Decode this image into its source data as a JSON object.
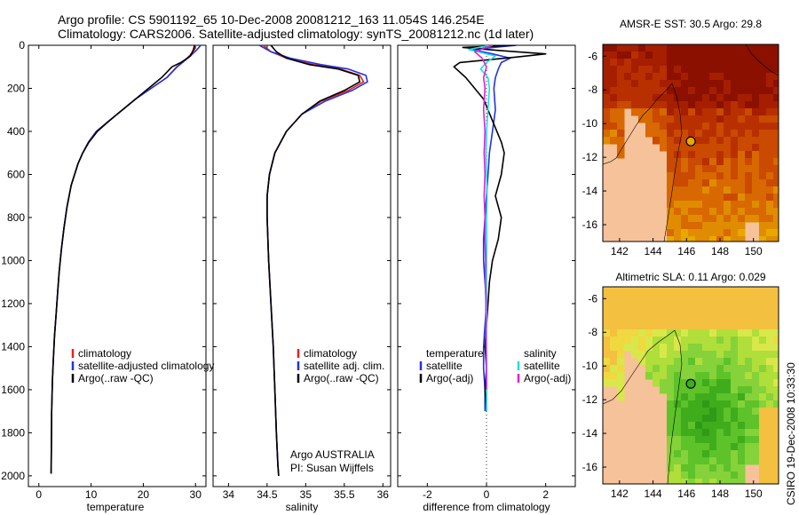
{
  "figure": {
    "title_line1": "Argo profile: CS 5901192_65 10-Dec-2008 20081212_163 11.054S 146.254E",
    "title_line2": "Climatology: CARS2006. Satellite-adjusted climatology: synTS_20081212.nc (1d later)",
    "credit": "CSIRO 19-Dec-2008 10:33:30",
    "colors": {
      "red": "#e8201e",
      "blue": "#2233dd",
      "black": "#000000",
      "cyan": "#22dddd",
      "magenta": "#dd22dd",
      "land": "#f5c29a",
      "water_bg": "#ffffff"
    }
  },
  "chart_data": [
    {
      "type": "line",
      "id": "temperature",
      "xlabel": "temperature",
      "ylabel": "",
      "xlim": [
        -2,
        32
      ],
      "ylim": [
        2050,
        0
      ],
      "xticks": [
        0,
        10,
        20,
        30
      ],
      "yticks": [
        0,
        200,
        400,
        600,
        800,
        1000,
        1200,
        1400,
        1600,
        1800,
        2000
      ],
      "legend": {
        "placement": "lower-right",
        "entries": [
          "climatology",
          "satellite-adjusted climatology",
          "Argo(..raw -QC)"
        ]
      },
      "series": [
        {
          "name": "climatology",
          "color": "red",
          "x": [
            30.0,
            29.8,
            28.8,
            27.5,
            26.4,
            24.5,
            21.5,
            18.5,
            16.0,
            13.5,
            11.0,
            9.5,
            8.4,
            7.5,
            6.2,
            5.4,
            4.8,
            4.3,
            3.9,
            3.6,
            3.3,
            3.0,
            2.8,
            2.6,
            2.45,
            2.35
          ],
          "y": [
            0,
            20,
            50,
            80,
            100,
            150,
            200,
            250,
            300,
            350,
            400,
            450,
            500,
            550,
            650,
            750,
            850,
            950,
            1050,
            1150,
            1250,
            1350,
            1450,
            1550,
            1700,
            1990
          ]
        },
        {
          "name": "satellite-adjusted climatology",
          "color": "blue",
          "x": [
            31.0,
            30.3,
            29.0,
            27.5,
            26.5,
            24.5,
            21.5,
            18.5,
            16.0,
            13.5,
            11.0,
            9.5,
            8.4,
            7.5,
            6.2,
            5.4,
            4.8,
            4.3,
            3.9,
            3.6,
            3.3,
            3.0,
            2.8,
            2.6,
            2.45,
            2.35
          ],
          "y": [
            0,
            20,
            50,
            80,
            100,
            150,
            200,
            250,
            300,
            350,
            400,
            450,
            500,
            550,
            650,
            750,
            850,
            950,
            1050,
            1150,
            1250,
            1350,
            1450,
            1550,
            1700,
            1990
          ]
        },
        {
          "name": "Argo(..raw -QC)",
          "color": "black",
          "x": [
            29.8,
            29.6,
            29.0,
            27.2,
            25.5,
            23.5,
            21.0,
            18.5,
            16.0,
            13.5,
            11.2,
            9.6,
            8.4,
            7.5,
            6.2,
            5.4,
            4.8,
            4.3,
            3.9,
            3.6,
            3.3,
            3.0,
            2.8,
            2.6,
            2.45,
            2.35
          ],
          "y": [
            0,
            20,
            50,
            80,
            100,
            150,
            200,
            250,
            300,
            350,
            400,
            450,
            500,
            550,
            650,
            750,
            850,
            950,
            1050,
            1150,
            1250,
            1350,
            1450,
            1550,
            1700,
            1990
          ]
        }
      ]
    },
    {
      "type": "line",
      "id": "salinity",
      "xlabel": "salinity",
      "ylabel": "",
      "xlim": [
        33.8,
        36.1
      ],
      "ylim": [
        2050,
        0
      ],
      "xticks": [
        34,
        34.5,
        35,
        35.5,
        36
      ],
      "yticks": [
        0,
        200,
        400,
        600,
        800,
        1000,
        1200,
        1400,
        1600,
        1800,
        2000
      ],
      "legend": {
        "placement": "lower-right",
        "entries": [
          "climatology",
          "satellite adj. clim.",
          "Argo(..raw -QC)"
        ]
      },
      "annotations": [
        "Argo AUSTRALIA",
        "PI: Susan Wijffels"
      ],
      "series": [
        {
          "name": "climatology",
          "color": "red",
          "x": [
            34.45,
            34.55,
            34.75,
            35.1,
            35.45,
            35.7,
            35.75,
            35.55,
            35.2,
            34.95,
            34.75,
            34.6,
            34.53,
            34.5,
            34.5,
            34.52,
            34.55,
            34.58,
            34.6,
            34.62,
            34.64,
            34.65
          ],
          "y": [
            0,
            30,
            60,
            90,
            110,
            140,
            170,
            210,
            260,
            320,
            400,
            500,
            600,
            700,
            800,
            1000,
            1200,
            1400,
            1600,
            1800,
            1950,
            2000
          ]
        },
        {
          "name": "satellite adj. clim.",
          "color": "blue",
          "x": [
            34.4,
            34.55,
            34.8,
            35.2,
            35.55,
            35.78,
            35.8,
            35.6,
            35.25,
            34.95,
            34.75,
            34.6,
            34.53,
            34.5,
            34.5,
            34.52,
            34.55,
            34.58,
            34.6,
            34.62,
            34.64,
            34.65
          ],
          "y": [
            0,
            30,
            60,
            90,
            110,
            140,
            170,
            210,
            260,
            320,
            400,
            500,
            600,
            700,
            800,
            1000,
            1200,
            1400,
            1600,
            1800,
            1950,
            2000
          ]
        },
        {
          "name": "Argo(..raw -QC)",
          "color": "black",
          "x": [
            34.55,
            34.62,
            34.75,
            35.05,
            35.42,
            35.68,
            35.7,
            35.5,
            35.18,
            34.95,
            34.75,
            34.6,
            34.53,
            34.5,
            34.5,
            34.52,
            34.55,
            34.58,
            34.6,
            34.62,
            34.64,
            34.65
          ],
          "y": [
            0,
            30,
            60,
            90,
            110,
            140,
            170,
            210,
            260,
            320,
            400,
            500,
            600,
            700,
            800,
            1000,
            1200,
            1400,
            1600,
            1800,
            1950,
            2000
          ]
        }
      ]
    },
    {
      "type": "line",
      "id": "difference",
      "xlabel": "difference from climatology",
      "ylabel": "",
      "xlim": [
        -3,
        3
      ],
      "ylim": [
        2050,
        0
      ],
      "xticks": [
        -2,
        0,
        2
      ],
      "yticks": [
        0,
        200,
        400,
        600,
        800,
        1000,
        1200,
        1400,
        1600,
        1800,
        2000
      ],
      "legend": {
        "placement": "lower-center",
        "groups": [
          {
            "heading": "temperature",
            "entries": [
              "satellite",
              "Argo(-adj)"
            ]
          },
          {
            "heading": "salinity",
            "entries": [
              "satellite",
              "Argo(-adj)"
            ]
          }
        ]
      },
      "series": [
        {
          "name": "temperature satellite",
          "color": "blue",
          "x": [
            1.0,
            -0.5,
            0.2,
            0.8,
            0.5,
            0.4,
            0.3,
            0.25,
            0.3,
            0.2,
            0.1,
            0.05,
            0.0,
            -0.05,
            -0.1,
            -0.1,
            -0.05,
            0.0,
            -0.05,
            -0.1,
            -0.1,
            -0.05,
            -0.05
          ],
          "y": [
            0,
            20,
            40,
            60,
            80,
            110,
            150,
            200,
            300,
            400,
            500,
            600,
            700,
            800,
            900,
            1000,
            1100,
            1200,
            1300,
            1400,
            1500,
            1600,
            1700
          ]
        },
        {
          "name": "temperature Argo(-adj)",
          "color": "black",
          "x": [
            1.0,
            -0.8,
            0.5,
            2.0,
            1.0,
            -0.9,
            -1.1,
            -0.7,
            -0.1,
            0.2,
            0.5,
            0.6,
            0.5,
            0.3,
            0.5,
            0.4,
            0.2,
            0.1,
            0.05,
            0.0,
            -0.05,
            0.0,
            -0.05,
            0.0
          ],
          "y": [
            0,
            10,
            25,
            40,
            55,
            80,
            100,
            150,
            250,
            350,
            450,
            500,
            600,
            700,
            800,
            900,
            1000,
            1100,
            1200,
            1300,
            1400,
            1500,
            1600,
            1700
          ]
        },
        {
          "name": "salinity satellite",
          "color": "cyan",
          "x": [
            0.1,
            -0.6,
            0.3,
            0.0,
            -0.2,
            0.05,
            0.1,
            0.05,
            0.0,
            -0.02,
            0.0,
            0.02,
            0.0,
            0.01,
            0.0,
            0.0,
            0.01,
            0.0,
            0.0,
            0.01,
            0.0
          ],
          "y": [
            0,
            20,
            50,
            80,
            110,
            150,
            200,
            300,
            400,
            500,
            600,
            700,
            800,
            900,
            1000,
            1100,
            1200,
            1300,
            1400,
            1500,
            1700
          ]
        },
        {
          "name": "salinity Argo(-adj)",
          "color": "magenta",
          "x": [
            0.2,
            -0.4,
            -0.15,
            0.0,
            -0.1,
            -0.05,
            -0.1,
            -0.05,
            -0.08,
            -0.05,
            -0.08,
            -0.05,
            -0.05,
            -0.03,
            -0.04,
            -0.02,
            -0.02,
            0.0
          ],
          "y": [
            0,
            30,
            60,
            100,
            150,
            200,
            300,
            400,
            500,
            600,
            700,
            800,
            900,
            1000,
            1100,
            1200,
            1300,
            1600
          ]
        }
      ]
    },
    {
      "type": "heatmap",
      "id": "sst-map",
      "title": "AMSR-E SST: 30.5  Argo: 29.8",
      "xticks": [
        142,
        144,
        146,
        148,
        150
      ],
      "yticks": [
        -6,
        -8,
        -10,
        -12,
        -14,
        -16
      ],
      "xlim": [
        141,
        151.5
      ],
      "ylim": [
        -17,
        -5.3
      ],
      "marker": {
        "lon": 146.254,
        "lat": -11.054
      }
    },
    {
      "type": "heatmap",
      "id": "sla-map",
      "title": "Altimetric SLA: 0.11  Argo: 0.029",
      "xticks": [
        142,
        144,
        146,
        148,
        150
      ],
      "yticks": [
        -6,
        -8,
        -10,
        -12,
        -14,
        -16
      ],
      "xlim": [
        141,
        151.5
      ],
      "ylim": [
        -17,
        -5.3
      ],
      "marker": {
        "lon": 146.254,
        "lat": -11.054
      }
    }
  ]
}
